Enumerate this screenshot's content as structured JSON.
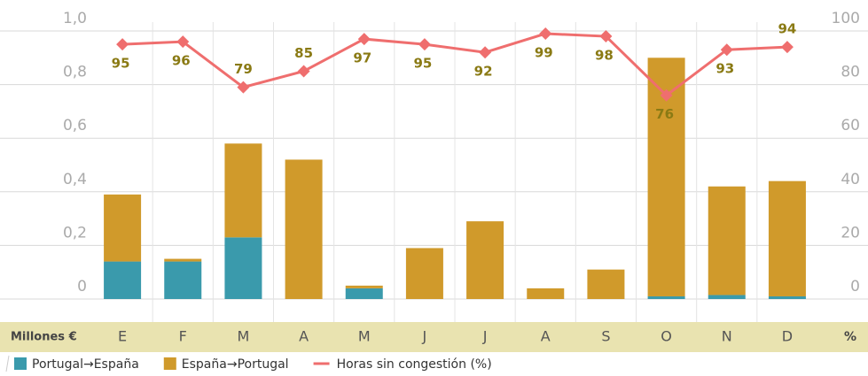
{
  "chart_data": {
    "type": "bar",
    "categories": [
      "E",
      "F",
      "M",
      "A",
      "M",
      "J",
      "J",
      "A",
      "S",
      "O",
      "N",
      "D"
    ],
    "series": [
      {
        "name": "Portugal→España",
        "color": "#3a9aac",
        "stack": "a",
        "values": [
          0.14,
          0.14,
          0.23,
          0,
          0.04,
          0,
          0,
          0,
          0,
          0.01,
          0.015,
          0.01
        ]
      },
      {
        "name": "España→Portugal",
        "color": "#d09a2b",
        "stack": "a",
        "values": [
          0.25,
          0.01,
          0.35,
          0.52,
          0.01,
          0.19,
          0.29,
          0.04,
          0.11,
          0.89,
          0.405,
          0.43
        ]
      },
      {
        "name": "Horas sin congestión (%)",
        "color": "#ef6e6e",
        "type": "line",
        "axis": "y2",
        "values": [
          95,
          96,
          79,
          85,
          97,
          95,
          92,
          99,
          98,
          76,
          93,
          94
        ]
      }
    ],
    "ylabel": "Millones €",
    "y2label": "%",
    "ylim": [
      0,
      1
    ],
    "yticks": [
      0,
      {
        "value": 0.2,
        "label": "0,2"
      },
      {
        "value": 0.4,
        "label": "0,4"
      },
      {
        "value": 0.6,
        "label": "0,6"
      },
      {
        "value": 0.8,
        "label": "0,8"
      },
      {
        "value": 1,
        "label": "1,0"
      }
    ],
    "y2lim": [
      0,
      100
    ],
    "y2ticks": [
      0,
      20,
      40,
      60,
      80,
      100
    ],
    "grid": true,
    "legend": "bottom"
  }
}
